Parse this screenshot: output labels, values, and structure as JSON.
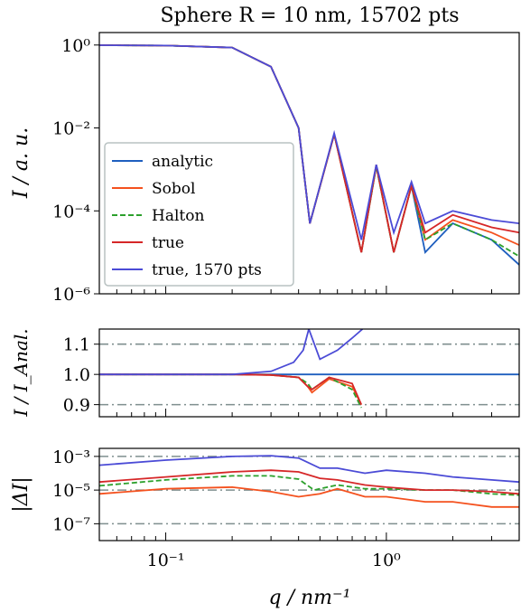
{
  "title": "Sphere R = 10 nm, 15702 pts",
  "colors": {
    "analytic": "#1f5fbf",
    "sobol": "#f4511e",
    "halton": "#2ca02c",
    "true": "#d62728",
    "true1570": "#4b4bd6",
    "refline": "#7f8f8f"
  },
  "xaxis": {
    "label": "q / nm⁻¹",
    "scale": "log",
    "range": [
      0.05,
      4.0
    ],
    "ticks": [
      {
        "value": 0.1,
        "label": "10⁻¹"
      },
      {
        "value": 1.0,
        "label": "10⁰"
      }
    ]
  },
  "legend": {
    "placement": "left-middle",
    "entries": [
      {
        "label": "analytic",
        "series": "analytic",
        "style": "solid"
      },
      {
        "label": "Sobol",
        "series": "sobol",
        "style": "solid"
      },
      {
        "label": "Halton",
        "series": "halton",
        "style": "dashed"
      },
      {
        "label": "true",
        "series": "true",
        "style": "solid"
      },
      {
        "label": "true, 1570 pts",
        "series": "true1570",
        "style": "solid"
      }
    ]
  },
  "chart_data": [
    {
      "type": "line",
      "panel": "intensity",
      "ylabel": "I / a. u.",
      "yscale": "log",
      "ylim": [
        1e-06,
        2.0
      ],
      "yticks": [
        {
          "value": 1,
          "label": "10⁰"
        },
        {
          "value": 0.01,
          "label": "10⁻²"
        },
        {
          "value": 0.0001,
          "label": "10⁻⁴"
        },
        {
          "value": 1e-06,
          "label": "10⁻⁶"
        }
      ],
      "radius_nm": 10,
      "points": 15702,
      "series": [
        {
          "name": "analytic",
          "x": [
            0.05,
            0.1,
            0.2,
            0.3,
            0.4,
            0.45,
            0.58,
            0.77,
            0.9,
            1.08,
            1.3,
            1.5,
            2.0,
            3.0,
            4.0
          ],
          "values": [
            0.99,
            0.97,
            0.87,
            0.3,
            0.01,
            5e-05,
            0.0072,
            1e-05,
            0.0012,
            1e-05,
            0.0004,
            1e-05,
            5e-05,
            2e-05,
            5e-06
          ]
        },
        {
          "name": "Sobol",
          "x": [
            0.05,
            0.1,
            0.2,
            0.3,
            0.4,
            0.45,
            0.58,
            0.77,
            0.9,
            1.08,
            1.3,
            1.5,
            2.0,
            3.0,
            4.0
          ],
          "values": [
            0.99,
            0.97,
            0.87,
            0.3,
            0.01,
            5e-05,
            0.007,
            1e-05,
            0.0012,
            1e-05,
            0.0004,
            2e-05,
            6e-05,
            3e-05,
            1.5e-05
          ]
        },
        {
          "name": "Halton",
          "x": [
            0.05,
            0.1,
            0.2,
            0.3,
            0.4,
            0.45,
            0.58,
            0.77,
            0.9,
            1.08,
            1.3,
            1.5,
            2.0,
            3.0,
            4.0
          ],
          "values": [
            0.99,
            0.97,
            0.87,
            0.3,
            0.01,
            5e-05,
            0.007,
            1e-05,
            0.0012,
            1e-05,
            0.0004,
            2e-05,
            5e-05,
            2e-05,
            8e-06
          ]
        },
        {
          "name": "true",
          "x": [
            0.05,
            0.1,
            0.2,
            0.3,
            0.4,
            0.45,
            0.58,
            0.77,
            0.9,
            1.08,
            1.3,
            1.5,
            2.0,
            3.0,
            4.0
          ],
          "values": [
            0.99,
            0.97,
            0.87,
            0.3,
            0.01,
            5e-05,
            0.007,
            1e-05,
            0.0013,
            1e-05,
            0.0004,
            3e-05,
            8e-05,
            4e-05,
            3e-05
          ]
        },
        {
          "name": "true, 1570 pts",
          "x": [
            0.05,
            0.1,
            0.2,
            0.3,
            0.4,
            0.45,
            0.58,
            0.77,
            0.9,
            1.08,
            1.3,
            1.5,
            2.0,
            3.0,
            4.0
          ],
          "values": [
            0.99,
            0.97,
            0.87,
            0.3,
            0.01,
            5e-05,
            0.0075,
            2e-05,
            0.0013,
            3e-05,
            0.0005,
            5e-05,
            0.0001,
            6e-05,
            5e-05
          ]
        }
      ]
    },
    {
      "type": "line",
      "panel": "ratio",
      "ylabel": "I / I_Anal.",
      "yscale": "linear",
      "ylim": [
        0.86,
        1.15
      ],
      "yticks": [
        {
          "value": 1.1,
          "label": "1.1"
        },
        {
          "value": 1.0,
          "label": "1.0"
        },
        {
          "value": 0.9,
          "label": "0.9"
        }
      ],
      "reference_lines": [
        1.1,
        0.9
      ],
      "series": [
        {
          "name": "analytic",
          "x": [
            0.05,
            4.0
          ],
          "values": [
            1.0,
            1.0
          ]
        },
        {
          "name": "Sobol",
          "x": [
            0.05,
            0.2,
            0.3,
            0.4,
            0.44,
            0.46,
            0.55,
            0.7,
            0.77
          ],
          "values": [
            1.0,
            1.0,
            0.998,
            0.99,
            0.96,
            0.94,
            0.985,
            0.96,
            0.9
          ]
        },
        {
          "name": "Halton",
          "x": [
            0.05,
            0.2,
            0.3,
            0.4,
            0.44,
            0.46,
            0.55,
            0.7,
            0.77
          ],
          "values": [
            1.0,
            1.0,
            0.998,
            0.99,
            0.97,
            0.95,
            0.99,
            0.95,
            0.89
          ]
        },
        {
          "name": "true",
          "x": [
            0.05,
            0.2,
            0.3,
            0.4,
            0.44,
            0.46,
            0.55,
            0.7,
            0.77
          ],
          "values": [
            1.0,
            1.0,
            0.998,
            0.99,
            0.96,
            0.95,
            0.99,
            0.97,
            0.9
          ]
        },
        {
          "name": "true, 1570 pts",
          "x": [
            0.05,
            0.2,
            0.3,
            0.38,
            0.42,
            0.445,
            0.5,
            0.6,
            0.7,
            0.78
          ],
          "values": [
            1.0,
            1.0,
            1.01,
            1.04,
            1.08,
            1.15,
            1.05,
            1.08,
            1.12,
            1.15
          ]
        }
      ]
    },
    {
      "type": "line",
      "panel": "abs_difference",
      "ylabel": "|ΔI|",
      "yscale": "log",
      "ylim": [
        1e-08,
        0.003
      ],
      "yticks": [
        {
          "value": 0.001,
          "label": "10⁻³"
        },
        {
          "value": 1e-05,
          "label": "10⁻⁵"
        },
        {
          "value": 1e-07,
          "label": "10⁻⁷"
        }
      ],
      "reference_lines": [
        0.001,
        1e-05,
        1e-07
      ],
      "series": [
        {
          "name": "Sobol",
          "x": [
            0.05,
            0.1,
            0.2,
            0.3,
            0.4,
            0.5,
            0.6,
            0.8,
            1.0,
            1.5,
            2.0,
            3.0,
            4.0
          ],
          "values": [
            6e-06,
            1.2e-05,
            1.5e-05,
            8e-06,
            4e-06,
            6e-06,
            1.2e-05,
            4e-06,
            4e-06,
            2e-06,
            2e-06,
            1e-06,
            1e-06
          ]
        },
        {
          "name": "Halton",
          "x": [
            0.05,
            0.1,
            0.2,
            0.3,
            0.4,
            0.47,
            0.6,
            0.8,
            1.0,
            1.5,
            2.0,
            3.0,
            4.0
          ],
          "values": [
            1.8e-05,
            4e-05,
            7e-05,
            7e-05,
            4.5e-05,
            1e-05,
            2e-05,
            1.2e-05,
            1.2e-05,
            1e-05,
            1e-05,
            6e-06,
            5e-06
          ]
        },
        {
          "name": "true",
          "x": [
            0.05,
            0.1,
            0.2,
            0.3,
            0.4,
            0.5,
            0.6,
            0.8,
            1.0,
            1.5,
            2.0,
            3.0,
            4.0
          ],
          "values": [
            3e-05,
            6e-05,
            0.00012,
            0.00015,
            0.00012,
            5e-05,
            4e-05,
            2e-05,
            1.5e-05,
            1e-05,
            1e-05,
            8e-06,
            6e-06
          ]
        },
        {
          "name": "true, 1570 pts",
          "x": [
            0.05,
            0.1,
            0.2,
            0.3,
            0.4,
            0.5,
            0.6,
            0.8,
            1.0,
            1.5,
            2.0,
            3.0,
            4.0
          ],
          "values": [
            0.0003,
            0.0006,
            0.001,
            0.0011,
            0.0008,
            0.0002,
            0.0002,
            0.0001,
            0.00015,
            0.0001,
            6e-05,
            4e-05,
            3e-05
          ]
        }
      ]
    }
  ]
}
